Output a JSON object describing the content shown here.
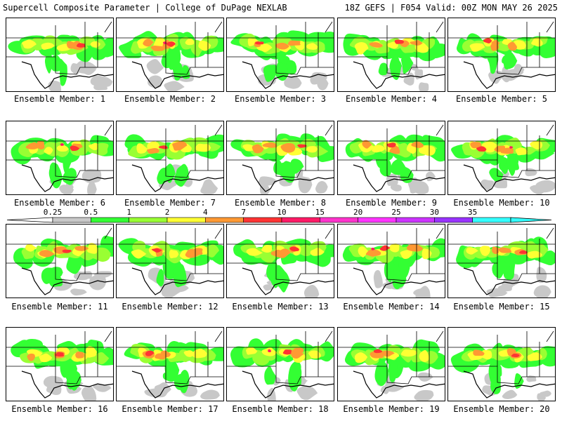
{
  "header": {
    "title_left": "Supercell Composite Parameter | College of DuPage NEXLAB",
    "title_right": "18Z GEFS | F054 Valid: 00Z MON MAY 26 2025"
  },
  "legend": {
    "ticks": [
      "0.25",
      "0.5",
      "1",
      "2",
      "4",
      "7",
      "10",
      "15",
      "20",
      "25",
      "30",
      "35"
    ],
    "colors": [
      "#c8c8c8",
      "#33ff33",
      "#99ff33",
      "#ffff33",
      "#ff9933",
      "#ff3333",
      "#ff1a66",
      "#ff33cc",
      "#ff33ff",
      "#cc33ff",
      "#9933ff",
      "#33ffff"
    ]
  },
  "panels": [
    {
      "label": "Ensemble Member: 1"
    },
    {
      "label": "Ensemble Member: 2"
    },
    {
      "label": "Ensemble Member: 3"
    },
    {
      "label": "Ensemble Member: 4"
    },
    {
      "label": "Ensemble Member: 5"
    },
    {
      "label": "Ensemble Member: 6"
    },
    {
      "label": "Ensemble Member: 7"
    },
    {
      "label": "Ensemble Member: 8"
    },
    {
      "label": "Ensemble Member: 9"
    },
    {
      "label": "Ensemble Member: 10"
    },
    {
      "label": "Ensemble Member: 11"
    },
    {
      "label": "Ensemble Member: 12"
    },
    {
      "label": "Ensemble Member: 13"
    },
    {
      "label": "Ensemble Member: 14"
    },
    {
      "label": "Ensemble Member: 15"
    },
    {
      "label": "Ensemble Member: 16"
    },
    {
      "label": "Ensemble Member: 17"
    },
    {
      "label": "Ensemble Member: 18"
    },
    {
      "label": "Ensemble Member: 19"
    },
    {
      "label": "Ensemble Member: 20"
    }
  ]
}
